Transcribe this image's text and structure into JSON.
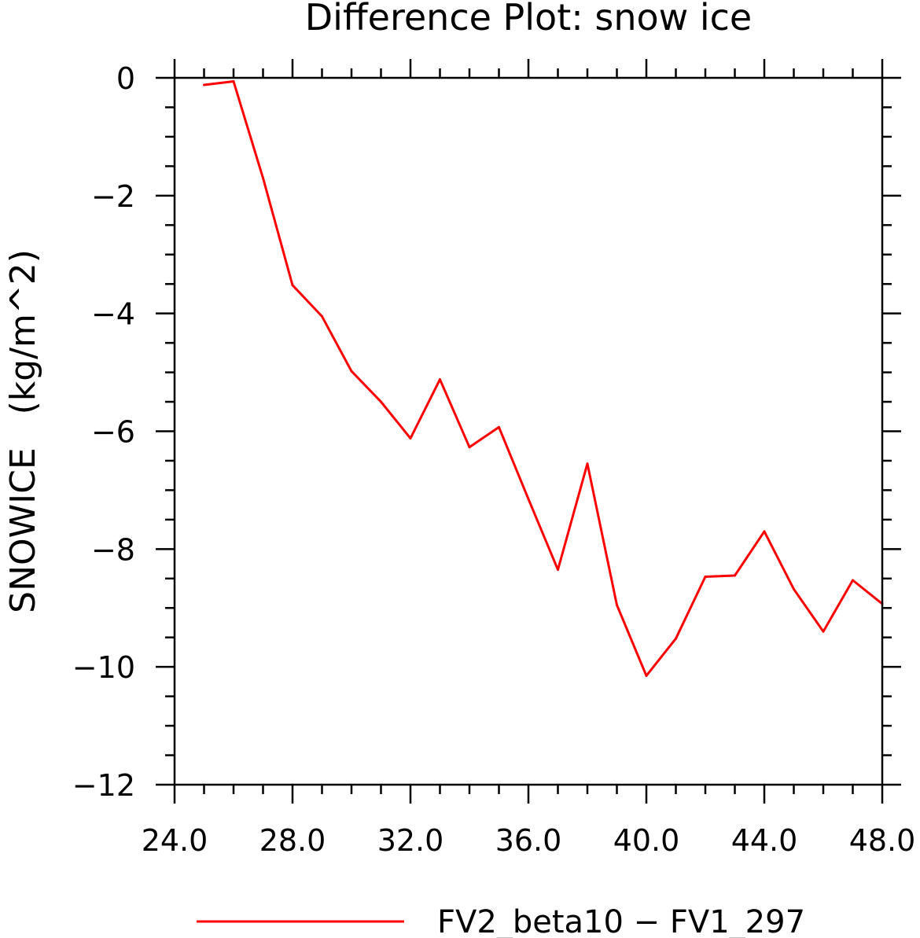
{
  "chart_data": {
    "type": "line",
    "title": "Difference Plot: snow ice",
    "ylabel": "SNOWICE   (kg/m^2)",
    "xlabel": "",
    "xlim": [
      24.0,
      48.0
    ],
    "ylim": [
      -12,
      0
    ],
    "x_ticks": [
      "24.0",
      "28.0",
      "32.0",
      "36.0",
      "40.0",
      "44.0",
      "48.0"
    ],
    "x_tick_values": [
      24,
      28,
      32,
      36,
      40,
      44,
      48
    ],
    "y_ticks": [
      "0",
      "−2",
      "−4",
      "−6",
      "−8",
      "−10",
      "−12"
    ],
    "y_tick_values": [
      0,
      -2,
      -4,
      -6,
      -8,
      -10,
      -12
    ],
    "grid": false,
    "legend_position": "bottom",
    "series": [
      {
        "name": "FV2_beta10 − FV1_297",
        "color": "#ff0000",
        "x": [
          25,
          26,
          27,
          28,
          29,
          30,
          31,
          32,
          33,
          34,
          35,
          36,
          37,
          38,
          39,
          40,
          41,
          42,
          43,
          44,
          45,
          46,
          47,
          48
        ],
        "y": [
          -0.12,
          -0.06,
          -1.7,
          -3.52,
          -4.05,
          -4.98,
          -5.5,
          -6.12,
          -5.12,
          -6.27,
          -5.93,
          -7.15,
          -8.35,
          -6.55,
          -8.95,
          -10.15,
          -9.52,
          -8.47,
          -8.45,
          -7.7,
          -8.68,
          -9.4,
          -8.53,
          -8.93
        ]
      }
    ]
  }
}
